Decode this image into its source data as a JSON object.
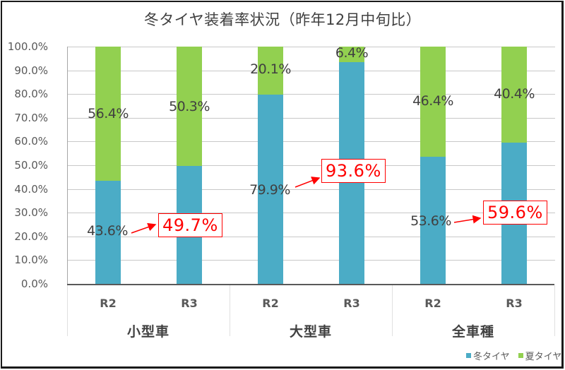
{
  "chart_data": {
    "type": "bar",
    "stacked": true,
    "title": "冬タイヤ装着率状況（昨年12月中旬比）",
    "xlabel": "",
    "ylabel": "",
    "ylim": [
      0,
      100
    ],
    "y_ticks": [
      "0.0%",
      "10.0%",
      "20.0%",
      "30.0%",
      "40.0%",
      "50.0%",
      "60.0%",
      "70.0%",
      "80.0%",
      "90.0%",
      "100.0%"
    ],
    "groups": [
      "小型車",
      "大型車",
      "全車種"
    ],
    "categories": [
      "R2",
      "R3",
      "R2",
      "R3",
      "R2",
      "R3"
    ],
    "series": [
      {
        "name": "冬タイヤ",
        "color": "#4bacc6",
        "values": [
          43.6,
          49.7,
          79.9,
          93.6,
          53.6,
          59.6
        ],
        "labels": [
          "43.6%",
          "49.7%",
          "79.9%",
          "93.6%",
          "53.6%",
          "59.6%"
        ]
      },
      {
        "name": "夏タイヤ",
        "color": "#92d050",
        "values": [
          56.4,
          50.3,
          20.1,
          6.4,
          46.4,
          40.4
        ],
        "labels": [
          "56.4%",
          "50.3%",
          "20.1%",
          "6.4%",
          "46.4%",
          "40.4%"
        ]
      }
    ],
    "callouts": [
      {
        "from": "43.6%",
        "to": "49.7%",
        "group": "小型車"
      },
      {
        "from": "79.9%",
        "to": "93.6%",
        "group": "大型車"
      },
      {
        "from": "53.6%",
        "to": "59.6%",
        "group": "全車種"
      }
    ],
    "grid": true,
    "legend_position": "bottom-right",
    "callout_color": "#ff0000"
  },
  "legend": {
    "winter": "冬タイヤ",
    "summer": "夏タイヤ"
  }
}
